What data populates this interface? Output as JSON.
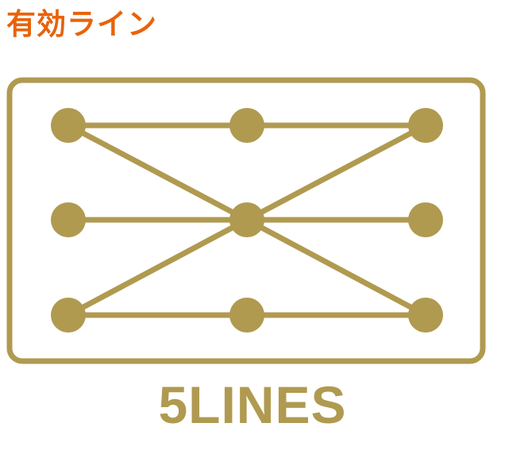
{
  "heading": {
    "text": "有効ライン",
    "color": "#e8630a"
  },
  "diagram": {
    "accent_color": "#b09a50",
    "grid": {
      "columns": 3,
      "rows": 3
    },
    "paylines": [
      {
        "name": "top-row",
        "path": [
          [
            0,
            0
          ],
          [
            1,
            0
          ],
          [
            2,
            0
          ]
        ]
      },
      {
        "name": "middle-row",
        "path": [
          [
            0,
            1
          ],
          [
            1,
            1
          ],
          [
            2,
            1
          ]
        ]
      },
      {
        "name": "bottom-row",
        "path": [
          [
            0,
            2
          ],
          [
            1,
            2
          ],
          [
            2,
            2
          ]
        ]
      },
      {
        "name": "diagonal-down",
        "path": [
          [
            0,
            0
          ],
          [
            1,
            1
          ],
          [
            2,
            2
          ]
        ]
      },
      {
        "name": "diagonal-up",
        "path": [
          [
            0,
            2
          ],
          [
            1,
            1
          ],
          [
            2,
            0
          ]
        ]
      }
    ]
  },
  "label": {
    "text": "5LINES"
  }
}
